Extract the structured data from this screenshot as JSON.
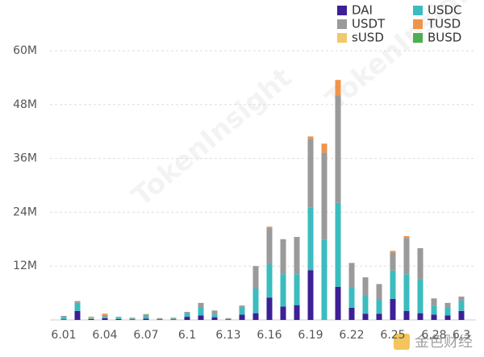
{
  "chart_data": {
    "type": "stacked-bar",
    "watermark": "TokenInsight",
    "source": "金色财经",
    "categories": [
      "6.01",
      null,
      null,
      "6.04",
      null,
      null,
      "6.07",
      null,
      null,
      "6.1",
      null,
      null,
      "6.13",
      null,
      null,
      "6.16",
      null,
      null,
      "6.19",
      null,
      null,
      "6.22",
      null,
      null,
      "6.25",
      null,
      null,
      "6.28",
      null,
      "6.3"
    ],
    "series": [
      {
        "name": "DAI",
        "color": "#3d1f96",
        "values": [
          0.1,
          2,
          0.2,
          0.4,
          0.2,
          0.1,
          0.3,
          0.1,
          0.1,
          0.7,
          1,
          0.6,
          0.1,
          1.2,
          1.5,
          5,
          3,
          3.3,
          11.1,
          0,
          7.4,
          2.7,
          1.4,
          1.4,
          4.7,
          2,
          1.5,
          1.2,
          1,
          2
        ]
      },
      {
        "name": "USDC",
        "color": "#3bbcbf",
        "values": [
          0.5,
          1.8,
          0.1,
          0.3,
          0.3,
          0.2,
          0.5,
          0.1,
          0.2,
          0.8,
          1.7,
          0.6,
          0.1,
          1.5,
          5.5,
          7.4,
          7.2,
          6.9,
          14,
          17.8,
          18.7,
          4.5,
          4,
          3,
          6.3,
          8.2,
          7.5,
          2,
          1.8,
          2.3
        ]
      },
      {
        "name": "USDT",
        "color": "#9a9a9a",
        "values": [
          0.3,
          0.4,
          0.3,
          0.4,
          0.2,
          0.2,
          0.4,
          0.2,
          0.2,
          0.3,
          1.1,
          0.9,
          0.2,
          0.5,
          5,
          8.1,
          7.8,
          8.3,
          15.3,
          19.5,
          24,
          5.5,
          4.1,
          3.6,
          4,
          8.1,
          7,
          1.6,
          1,
          0.9
        ]
      },
      {
        "name": "TUSD",
        "color": "#f0944a",
        "values": [
          0,
          0,
          0,
          0.3,
          0,
          0,
          0,
          0,
          0,
          0,
          0,
          0,
          0,
          0,
          0,
          0.3,
          0,
          0,
          0.5,
          2,
          3.4,
          0,
          0,
          0,
          0.4,
          0.4,
          0,
          0,
          0,
          0
        ]
      },
      {
        "name": "sUSD",
        "color": "#f0c96a",
        "values": [
          0,
          0,
          0.2,
          0,
          0,
          0,
          0,
          0,
          0,
          0,
          0,
          0,
          0,
          0,
          0,
          0,
          0,
          0,
          0,
          0,
          0,
          0,
          0,
          0,
          0,
          0,
          0,
          0,
          0,
          0
        ]
      },
      {
        "name": "BUSD",
        "color": "#4caf50",
        "values": [
          0,
          0,
          0,
          0,
          0,
          0,
          0.1,
          0,
          0,
          0,
          0,
          0,
          0,
          0,
          0,
          0,
          0,
          0,
          0,
          0,
          0,
          0,
          0,
          0,
          0,
          0,
          0,
          0,
          0,
          0
        ]
      }
    ],
    "ylim": [
      0,
      60
    ],
    "yticks": [
      {
        "value": 12,
        "label": "12M"
      },
      {
        "value": 24,
        "label": "24M"
      },
      {
        "value": 36,
        "label": "36M"
      },
      {
        "value": 48,
        "label": "48M"
      },
      {
        "value": 60,
        "label": "60M"
      }
    ],
    "grid": true
  }
}
